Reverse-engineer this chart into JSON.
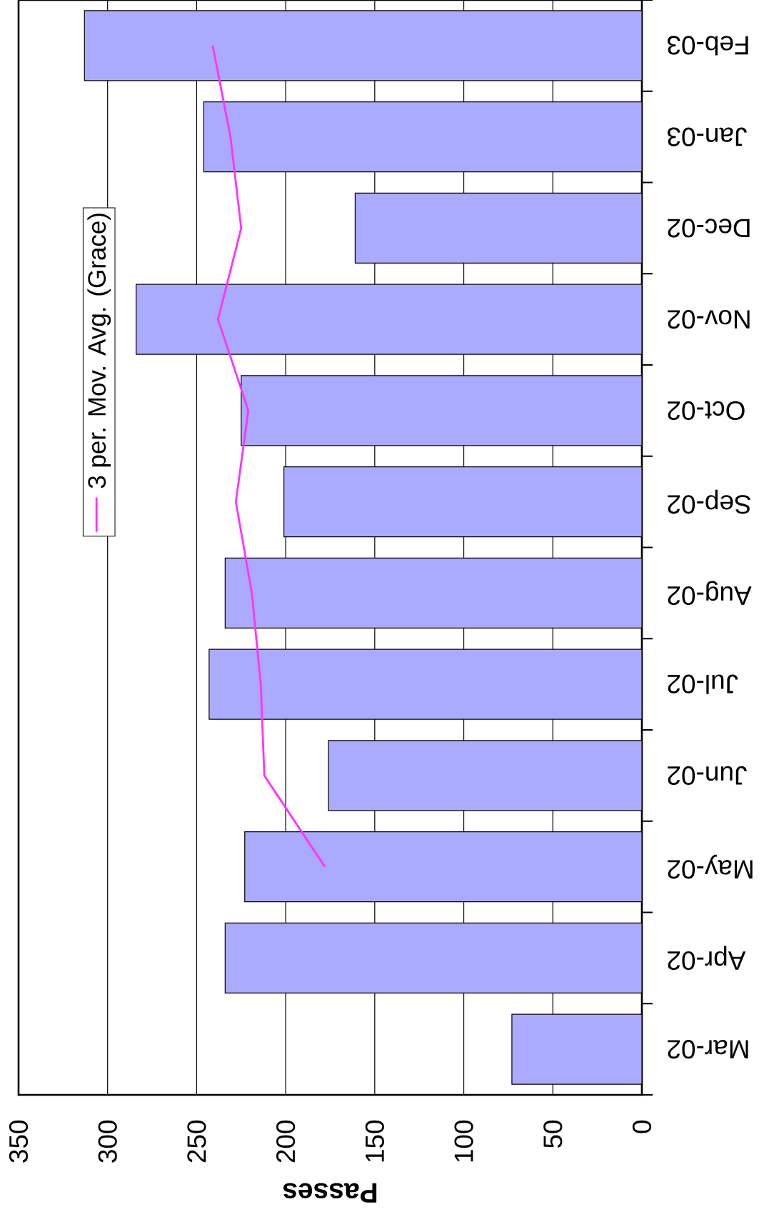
{
  "chart_data": {
    "type": "bar",
    "orientation": "horizontal",
    "categories": [
      "Feb-03",
      "Jan-03",
      "Dec-02",
      "Nov-02",
      "Oct-02",
      "Sep-02",
      "Aug-02",
      "Jul-02",
      "Jun-02",
      "May-02",
      "Apr-02",
      "Mar-02"
    ],
    "series": [
      {
        "color": "#aaaaff",
        "values": [
          313,
          246,
          161,
          284,
          225,
          201,
          234,
          243,
          176,
          223,
          234,
          73
        ]
      },
      {
        "type": "line",
        "name": "3 per. Mov. Avg. (Grace)",
        "color": "#ff33ff",
        "values": [
          241,
          231,
          225,
          238,
          221,
          228,
          219,
          214,
          212,
          178,
          null,
          null
        ]
      }
    ],
    "xlabel": "Passes",
    "xlim": [
      350,
      0
    ],
    "xticks": [
      350,
      300,
      250,
      200,
      150,
      100,
      50,
      0
    ],
    "grid": "x",
    "legend": "top left"
  }
}
